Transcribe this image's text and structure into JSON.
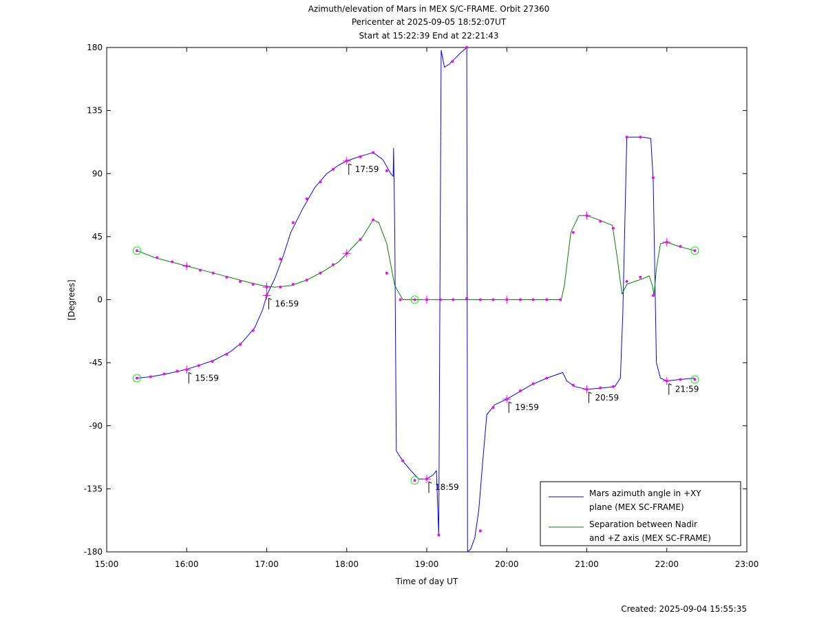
{
  "chart_data": {
    "type": "line",
    "title_lines": [
      "Azimuth/elevation of Mars in MEX S/C-FRAME.  Orbit 27360",
      "Pericenter at 2025-09-05 18:52:07UT",
      "Start at 15:22:39 End at 22:21:43"
    ],
    "xlabel": "Time of day UT",
    "ylabel": "[Degrees]",
    "xlim": [
      15.0,
      23.0
    ],
    "ylim": [
      -180,
      180
    ],
    "xticks": [
      {
        "v": 15,
        "label": "15:00"
      },
      {
        "v": 16,
        "label": "16:00"
      },
      {
        "v": 17,
        "label": "17:00"
      },
      {
        "v": 18,
        "label": "18:00"
      },
      {
        "v": 19,
        "label": "19:00"
      },
      {
        "v": 20,
        "label": "20:00"
      },
      {
        "v": 21,
        "label": "21:00"
      },
      {
        "v": 22,
        "label": "22:00"
      },
      {
        "v": 23,
        "label": "23:00"
      }
    ],
    "yticks": [
      {
        "v": 180,
        "label": "180"
      },
      {
        "v": 135,
        "label": "135"
      },
      {
        "v": 90,
        "label": "90"
      },
      {
        "v": 45,
        "label": "45"
      },
      {
        "v": 0,
        "label": "0"
      },
      {
        "v": -45,
        "label": "-45"
      },
      {
        "v": -90,
        "label": "-90"
      },
      {
        "v": -135,
        "label": "-135"
      },
      {
        "v": -180,
        "label": "-180"
      }
    ],
    "grid": false,
    "legend_position": "bottom-right",
    "series": [
      {
        "name": "Mars azimuth angle in +XY plane (MEX SC-FRAME)",
        "legend_lines": [
          "Mars azimuth angle in +XY",
          "plane (MEX SC-FRAME)"
        ],
        "color": "#0000ff",
        "x": [
          15.378,
          15.55,
          15.75,
          15.98,
          16.15,
          16.35,
          16.55,
          16.7,
          16.85,
          16.95,
          17.0,
          17.1,
          17.2,
          17.3,
          17.45,
          17.6,
          17.75,
          17.9,
          18.0,
          18.15,
          18.33,
          18.45,
          18.55,
          18.58,
          18.585,
          18.6,
          18.62,
          18.7,
          18.8,
          18.9,
          19.0,
          19.08,
          19.12,
          19.15,
          19.18,
          19.22,
          19.28,
          19.35,
          19.42,
          19.48,
          19.5,
          19.51,
          19.55,
          19.6,
          19.65,
          19.7,
          19.75,
          19.85,
          20.0,
          20.15,
          20.3,
          20.5,
          20.65,
          20.7,
          20.75,
          20.85,
          21.0,
          21.2,
          21.35,
          21.42,
          21.45,
          21.5,
          21.7,
          21.8,
          21.83,
          21.87,
          21.92,
          22.0,
          22.15,
          22.35
        ],
        "y": [
          -56,
          -55,
          -53,
          -50,
          -47,
          -43,
          -37,
          -30,
          -20,
          -7,
          3,
          15,
          30,
          48,
          65,
          80,
          90,
          96,
          99,
          102,
          105,
          100,
          90,
          88,
          108,
          50,
          -108,
          -115,
          -122,
          -128,
          -128,
          -125,
          -122,
          -168,
          178,
          166,
          168,
          172,
          176,
          179,
          180,
          -180,
          -178,
          -170,
          -150,
          -115,
          -82,
          -75,
          -71,
          -66,
          -61,
          -56,
          -53,
          -52,
          -58,
          -62,
          -64,
          -63,
          -62,
          -56,
          -10,
          116,
          116,
          115,
          85,
          -45,
          -56,
          -58,
          -57,
          -56
        ]
      },
      {
        "name": "Separation between Nadir and +Z axis (MEX SC-FRAME)",
        "legend_lines": [
          "Separation between Nadir",
          "and +Z axis (MEX SC-FRAME)"
        ],
        "color": "#008000",
        "x": [
          15.378,
          15.6,
          15.8,
          16.0,
          16.2,
          16.4,
          16.6,
          16.8,
          16.95,
          17.1,
          17.3,
          17.5,
          17.7,
          17.9,
          18.0,
          18.2,
          18.33,
          18.4,
          18.5,
          18.6,
          18.7,
          19.0,
          19.5,
          20.0,
          20.5,
          20.68,
          20.72,
          20.8,
          20.9,
          21.0,
          21.15,
          21.32,
          21.38,
          21.44,
          21.5,
          21.7,
          21.78,
          21.82,
          21.84,
          21.87,
          21.92,
          22.0,
          22.15,
          22.35
        ],
        "y": [
          35,
          30,
          27,
          24,
          21,
          18,
          15,
          12,
          10,
          9,
          10,
          14,
          20,
          27,
          33,
          45,
          57,
          55,
          40,
          10,
          0,
          0,
          0,
          0,
          0,
          0,
          10,
          48,
          60,
          60,
          57,
          53,
          30,
          4,
          11,
          15,
          17,
          10,
          3,
          22,
          40,
          41,
          38,
          35
        ]
      }
    ],
    "hour_markers": [
      {
        "label": "15:59",
        "x": 16.0,
        "y": -50
      },
      {
        "label": "16:59",
        "x": 17.0,
        "y": 3
      },
      {
        "label": "17:59",
        "x": 18.0,
        "y": 99
      },
      {
        "label": "18:59",
        "x": 19.0,
        "y": -128
      },
      {
        "label": "19:59",
        "x": 20.0,
        "y": -71
      },
      {
        "label": "20:59",
        "x": 21.0,
        "y": -64
      },
      {
        "label": "21:59",
        "x": 22.0,
        "y": -58
      }
    ],
    "cross_markers": [
      {
        "x": 16.0,
        "y": -50
      },
      {
        "x": 17.0,
        "y": 3
      },
      {
        "x": 18.0,
        "y": 99
      },
      {
        "x": 19.0,
        "y": -128
      },
      {
        "x": 20.0,
        "y": -71
      },
      {
        "x": 21.0,
        "y": -64
      },
      {
        "x": 22.0,
        "y": -58
      },
      {
        "x": 16.0,
        "y": 24
      },
      {
        "x": 17.0,
        "y": 9
      },
      {
        "x": 18.0,
        "y": 33
      },
      {
        "x": 19.0,
        "y": 0
      },
      {
        "x": 20.0,
        "y": 0
      },
      {
        "x": 21.0,
        "y": 60
      },
      {
        "x": 22.0,
        "y": 41
      }
    ],
    "circle_markers": [
      {
        "x": 15.378,
        "y": -56
      },
      {
        "x": 15.378,
        "y": 35
      },
      {
        "x": 18.85,
        "y": -129
      },
      {
        "x": 18.85,
        "y": 0
      },
      {
        "x": 22.35,
        "y": -57
      },
      {
        "x": 22.35,
        "y": 35
      }
    ],
    "dot_markers": [
      {
        "x": 15.55,
        "y": -55
      },
      {
        "x": 15.72,
        "y": -53
      },
      {
        "x": 15.88,
        "y": -51
      },
      {
        "x": 16.15,
        "y": -47
      },
      {
        "x": 16.32,
        "y": -44
      },
      {
        "x": 16.5,
        "y": -39
      },
      {
        "x": 16.67,
        "y": -32
      },
      {
        "x": 16.83,
        "y": -22
      },
      {
        "x": 17.17,
        "y": 29
      },
      {
        "x": 17.33,
        "y": 55
      },
      {
        "x": 17.5,
        "y": 72
      },
      {
        "x": 17.67,
        "y": 84
      },
      {
        "x": 17.83,
        "y": 93
      },
      {
        "x": 18.17,
        "y": 102
      },
      {
        "x": 18.33,
        "y": 105
      },
      {
        "x": 18.5,
        "y": 92
      },
      {
        "x": 18.7,
        "y": -115
      },
      {
        "x": 19.15,
        "y": -168
      },
      {
        "x": 19.32,
        "y": 170
      },
      {
        "x": 19.5,
        "y": 180
      },
      {
        "x": 19.67,
        "y": -165
      },
      {
        "x": 19.83,
        "y": -77
      },
      {
        "x": 20.17,
        "y": -65
      },
      {
        "x": 20.33,
        "y": -60
      },
      {
        "x": 20.5,
        "y": -56
      },
      {
        "x": 20.83,
        "y": -61
      },
      {
        "x": 21.17,
        "y": -63
      },
      {
        "x": 21.33,
        "y": -62
      },
      {
        "x": 21.5,
        "y": 116
      },
      {
        "x": 21.67,
        "y": 116
      },
      {
        "x": 21.83,
        "y": 87
      },
      {
        "x": 22.17,
        "y": -57
      },
      {
        "x": 15.63,
        "y": 30
      },
      {
        "x": 15.82,
        "y": 27
      },
      {
        "x": 16.17,
        "y": 21
      },
      {
        "x": 16.33,
        "y": 19
      },
      {
        "x": 16.5,
        "y": 16
      },
      {
        "x": 16.67,
        "y": 13
      },
      {
        "x": 16.83,
        "y": 11
      },
      {
        "x": 17.17,
        "y": 9
      },
      {
        "x": 17.33,
        "y": 11
      },
      {
        "x": 17.5,
        "y": 14
      },
      {
        "x": 17.67,
        "y": 19
      },
      {
        "x": 17.83,
        "y": 25
      },
      {
        "x": 18.17,
        "y": 43
      },
      {
        "x": 18.33,
        "y": 57
      },
      {
        "x": 18.5,
        "y": 19
      },
      {
        "x": 18.67,
        "y": 0
      },
      {
        "x": 19.17,
        "y": 0
      },
      {
        "x": 19.33,
        "y": 0
      },
      {
        "x": 19.5,
        "y": 1
      },
      {
        "x": 19.67,
        "y": 0
      },
      {
        "x": 19.83,
        "y": 0
      },
      {
        "x": 20.17,
        "y": 0
      },
      {
        "x": 20.33,
        "y": 0
      },
      {
        "x": 20.5,
        "y": 0
      },
      {
        "x": 20.67,
        "y": 0
      },
      {
        "x": 20.83,
        "y": 48
      },
      {
        "x": 21.17,
        "y": 56
      },
      {
        "x": 21.33,
        "y": 51
      },
      {
        "x": 21.5,
        "y": 13
      },
      {
        "x": 21.67,
        "y": 16
      },
      {
        "x": 21.83,
        "y": 3
      },
      {
        "x": 22.17,
        "y": 38
      }
    ],
    "marker_color": "#ff00ff",
    "circle_color": "#00ff00"
  },
  "footer": {
    "created": "Created: 2025-09-04 15:55:35"
  }
}
